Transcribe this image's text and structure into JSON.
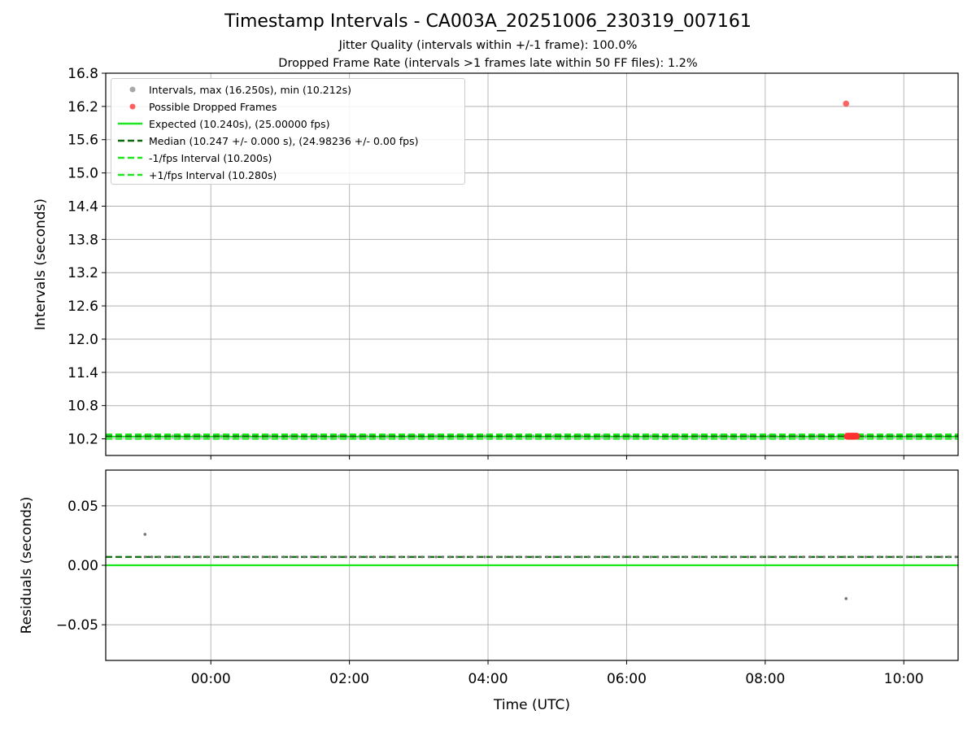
{
  "figure": {
    "title": "Timestamp Intervals - CA003A_20251006_230319_007161",
    "subtitle_1": "Jitter Quality (intervals within +/-1 frame): 100.0%",
    "subtitle_2": "Dropped Frame Rate (intervals >1 frames late within 50 FF files): 1.2%"
  },
  "legend": [
    {
      "label": "Intervals, max (16.250s), min (10.212s)",
      "kind": "marker",
      "color": "#a8a8a8"
    },
    {
      "label": "Possible Dropped Frames",
      "kind": "marker",
      "color": "#ff6060"
    },
    {
      "label": "Expected (10.240s), (25.00000 fps)",
      "kind": "line",
      "color": "#1ae81a",
      "dash": "solid"
    },
    {
      "label": "Median (10.247 +/- 0.000 s), (24.98236 +/- 0.00 fps)",
      "kind": "line",
      "color": "#0b6b0b",
      "dash": "dashed"
    },
    {
      "label": "-1/fps Interval (10.200s)",
      "kind": "line",
      "color": "#1ae81a",
      "dash": "dashed"
    },
    {
      "label": "+1/fps Interval (10.280s)",
      "kind": "line",
      "color": "#1ae81a",
      "dash": "dashed"
    }
  ],
  "chart_data": [
    {
      "type": "scatter",
      "panel": "top",
      "ylabel": "Intervals (seconds)",
      "xlabel": "",
      "xlim": [
        "22:29",
        "10:47"
      ],
      "ylim": [
        9.9,
        16.8
      ],
      "yticks": [
        10.2,
        10.8,
        11.4,
        12.0,
        12.6,
        13.2,
        13.8,
        14.4,
        15.0,
        15.6,
        16.2,
        16.8
      ],
      "ytick_labels": [
        "10.2",
        "10.8",
        "11.4",
        "12.0",
        "12.6",
        "13.2",
        "13.8",
        "14.4",
        "15.0",
        "15.6",
        "16.2",
        "16.8"
      ],
      "xticks": [
        "00:00",
        "02:00",
        "04:00",
        "06:00",
        "08:00",
        "10:00"
      ],
      "grid": true,
      "legend_position": "upper-left",
      "series": [
        {
          "name": "Intervals, max (16.250s), min (10.212s)",
          "color": "#a8a8a8",
          "style": "scatter",
          "x_range": [
            "23:03",
            "10:47"
          ],
          "y_typical": 10.247,
          "y_max": 16.25,
          "y_min": 10.212
        },
        {
          "name": "Possible Dropped Frames",
          "color": "#ff3030",
          "style": "scatter",
          "x": [
            "09:10",
            "09:11",
            "09:12",
            "09:13",
            "09:14",
            "09:15",
            "09:16",
            "09:17",
            "09:18",
            "09:19"
          ],
          "y": [
            16.25,
            10.247,
            10.247,
            10.247,
            10.247,
            10.247,
            10.247,
            10.247,
            10.247,
            10.247
          ]
        },
        {
          "name": "Expected (10.240s), (25.00000 fps)",
          "color": "#1ae81a",
          "style": "solid",
          "y": 10.24
        },
        {
          "name": "Median (10.247 +/- 0.000 s), (24.98236 +/- 0.00 fps)",
          "color": "#0b6b0b",
          "style": "dashed",
          "y": 10.247
        },
        {
          "name": "-1/fps Interval (10.200s)",
          "color": "#1ae81a",
          "style": "dashed",
          "y": 10.2
        },
        {
          "name": "+1/fps Interval (10.280s)",
          "color": "#1ae81a",
          "style": "dashed",
          "y": 10.28
        }
      ]
    },
    {
      "type": "scatter",
      "panel": "bottom",
      "ylabel": "Residuals (seconds)",
      "xlabel": "Time (UTC)",
      "xlim": [
        "22:29",
        "10:47"
      ],
      "ylim": [
        -0.08,
        0.08
      ],
      "yticks": [
        -0.05,
        0.0,
        0.05
      ],
      "ytick_labels": [
        "−0.05",
        "0.00",
        "0.05"
      ],
      "xticks": [
        "00:00",
        "02:00",
        "04:00",
        "06:00",
        "08:00",
        "10:00"
      ],
      "grid": true,
      "series": [
        {
          "name": "Residuals",
          "color": "#777777",
          "style": "scatter",
          "x_range": [
            "23:03",
            "10:47"
          ],
          "y_typical": 0.007,
          "outliers": [
            {
              "x": "23:03",
              "y": 0.026
            },
            {
              "x": "09:10",
              "y": -0.028
            }
          ]
        },
        {
          "name": "Expected",
          "color": "#1ae81a",
          "style": "solid",
          "y": 0.0
        },
        {
          "name": "Median",
          "color": "#0b6b0b",
          "style": "dashed",
          "y": 0.007
        }
      ]
    }
  ]
}
